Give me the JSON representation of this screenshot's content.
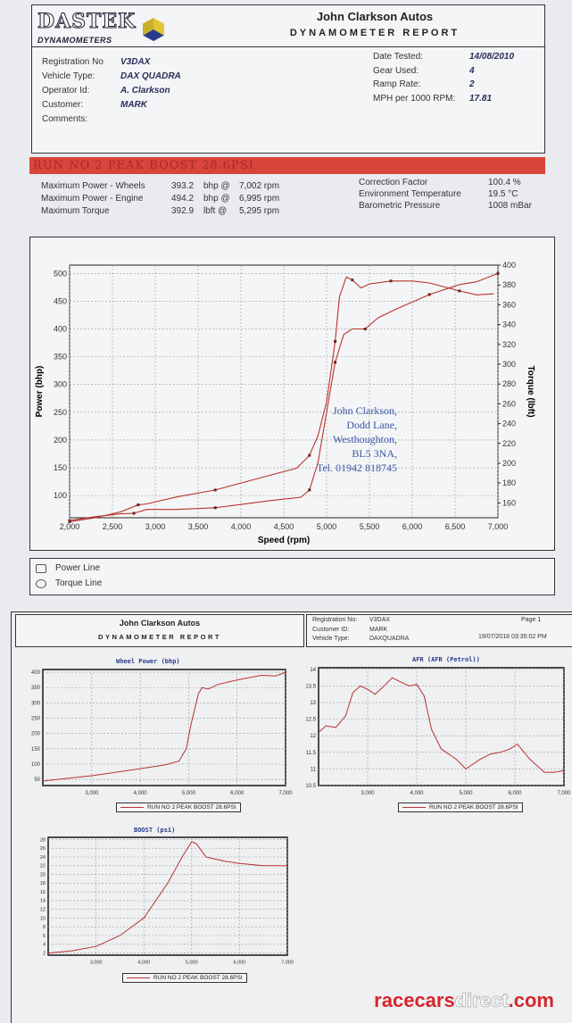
{
  "report": {
    "logo_text": "DASTEK",
    "logo_sub": "DYNAMOMETERS",
    "company": "John Clarkson Autos",
    "title": "DYNAMOMETER REPORT",
    "fields_left": [
      {
        "label": "Registration No",
        "value": "V3DAX"
      },
      {
        "label": "Vehicle Type:",
        "value": "DAX QUADRA"
      },
      {
        "label": "Operator Id:",
        "value": "A. Clarkson"
      },
      {
        "label": "Customer:",
        "value": "MARK"
      },
      {
        "label": "Comments:",
        "value": ""
      }
    ],
    "fields_right": [
      {
        "label": "Date Tested:",
        "value": "14/08/2010"
      },
      {
        "label": "Gear Used:",
        "value": "4"
      },
      {
        "label": "Ramp Rate:",
        "value": "2"
      },
      {
        "label": "MPH per 1000 RPM:",
        "value": "17.81"
      }
    ],
    "run_banner": "RUN NO 2 PEAK BOOST 28.6PSI",
    "stats_left": [
      {
        "label": "Maximum Power - Wheels",
        "value": "393.2",
        "unit": "bhp @",
        "rpm": "7,002 rpm"
      },
      {
        "label": "Maximum Power - Engine",
        "value": "494.2",
        "unit": "bhp @",
        "rpm": "6,995 rpm"
      },
      {
        "label": "Maximum Torque",
        "value": "392.9",
        "unit": "lbft @",
        "rpm": "5,295 rpm"
      }
    ],
    "stats_right": [
      {
        "label": "Correction Factor",
        "value": "100.4 %"
      },
      {
        "label": "Environment Temperature",
        "value": "19.5 °C"
      },
      {
        "label": "Barometric Pressure",
        "value": "1008 mBar"
      }
    ],
    "stamp": [
      "John Clarkson,",
      "Dodd Lane,",
      "Westhoughton,",
      "BL5 3NA,",
      "Tel. 01942 818745"
    ],
    "legend": [
      "Power Line",
      "Torque Line"
    ]
  },
  "page2": {
    "company": "John Clarkson Autos",
    "title": "DYNAMOMETER REPORT",
    "fields": [
      {
        "label": "Registration No:",
        "value": "V3DAX"
      },
      {
        "label": "Customer ID:",
        "value": "MARK"
      },
      {
        "label": "Vehicle Type:",
        "value": "DAXQUADRA"
      }
    ],
    "page": "Page 1",
    "timestamp": "19/07/2018 03:35:02 PM",
    "legend_label": "RUN NO 2 PEAK BOOST 28.6PSI"
  },
  "watermark": {
    "part1": "racecars",
    "part2": "direct",
    "part3": ".com"
  },
  "colors": {
    "line": "#b8322e",
    "banner": "#d8453d",
    "stamp": "#3a55a8",
    "watermark_red": "#d6262b"
  },
  "chart_data": [
    {
      "type": "line",
      "title": "",
      "xlabel": "Speed (rpm)",
      "ylabel": "Power (bhp)",
      "y2label": "Torque (lbft)",
      "xlim": [
        2000,
        7000
      ],
      "ylim": [
        60,
        515
      ],
      "y2lim": [
        145,
        400
      ],
      "grid": true,
      "xticks": [
        "2,000",
        "2,500",
        "3,000",
        "3,500",
        "4,000",
        "4,500",
        "5,000",
        "5,500",
        "6,000",
        "6,500",
        "7,000"
      ],
      "xtick_values": [
        2000,
        2500,
        3000,
        3500,
        4000,
        4500,
        5000,
        5500,
        6000,
        6500,
        7000
      ],
      "yticks": [
        100,
        150,
        200,
        250,
        300,
        350,
        400,
        450,
        500
      ],
      "y2ticks": [
        160,
        180,
        200,
        220,
        240,
        260,
        280,
        300,
        320,
        340,
        360,
        380,
        400
      ],
      "legend": "bottom",
      "series": [
        {
          "name": "Power Line",
          "axis": "left",
          "x": [
            2000,
            2300,
            2600,
            2750,
            2900,
            3250,
            3700,
            4300,
            4700,
            4800,
            4900,
            5000,
            5100,
            5200,
            5300,
            5450,
            5600,
            5800,
            6200,
            6550,
            6750,
            7000
          ],
          "y": [
            55,
            62,
            67,
            68,
            75,
            75,
            78,
            90,
            97,
            110,
            160,
            250,
            340,
            390,
            400,
            400,
            420,
            435,
            462,
            480,
            485,
            500
          ]
        },
        {
          "name": "Torque Line",
          "axis": "right",
          "x": [
            2000,
            2300,
            2600,
            2800,
            2900,
            3250,
            3700,
            4300,
            4650,
            4800,
            4900,
            5000,
            5100,
            5150,
            5230,
            5300,
            5400,
            5500,
            5750,
            6000,
            6200,
            6550,
            6750,
            6950
          ],
          "y": [
            141,
            145,
            151,
            158,
            159,
            166,
            173,
            187,
            195,
            208,
            228,
            262,
            323,
            368,
            388,
            385,
            377,
            381,
            384,
            384,
            382,
            374,
            370,
            371
          ]
        }
      ]
    },
    {
      "type": "line",
      "title": "Wheel Power (bhp)",
      "xlim": [
        1990,
        7000
      ],
      "ylim": [
        30,
        409
      ],
      "grid": true,
      "xticks": [
        "3,000",
        "4,000",
        "5,000",
        "6,000",
        "7,000"
      ],
      "xtick_values": [
        3000,
        4000,
        5000,
        6000,
        7000
      ],
      "yticks": [
        50,
        100,
        150,
        200,
        250,
        300,
        350,
        400
      ],
      "series": [
        {
          "name": "RUN NO 2 PEAK BOOST 28.6PSI",
          "x": [
            2000,
            3000,
            4000,
            4500,
            4800,
            4950,
            5050,
            5200,
            5280,
            5400,
            5600,
            6000,
            6500,
            6800,
            7000
          ],
          "y": [
            45,
            62,
            85,
            97,
            110,
            150,
            230,
            330,
            350,
            345,
            360,
            375,
            390,
            388,
            400
          ]
        }
      ]
    },
    {
      "type": "line",
      "title": "AFR (AFR (Petrol))",
      "xlim": [
        2000,
        7000
      ],
      "ylim": [
        10.5,
        14.05
      ],
      "grid": true,
      "xticks": [
        "3,000",
        "4,000",
        "5,000",
        "6,000",
        "7,000"
      ],
      "xtick_values": [
        3000,
        4000,
        5000,
        6000,
        7000
      ],
      "yticks": [
        10.5,
        11,
        11.5,
        12,
        12.5,
        13,
        13.5,
        14
      ],
      "series": [
        {
          "name": "RUN NO 2 PEAK BOOST 28.6PSI",
          "x": [
            2000,
            2150,
            2350,
            2550,
            2700,
            2850,
            3000,
            3150,
            3300,
            3500,
            3700,
            3850,
            4000,
            4150,
            4300,
            4500,
            4800,
            5000,
            5300,
            5500,
            5700,
            5900,
            6050,
            6300,
            6600,
            6800,
            7000
          ],
          "y": [
            12.1,
            12.3,
            12.25,
            12.6,
            13.3,
            13.5,
            13.4,
            13.25,
            13.45,
            13.75,
            13.6,
            13.5,
            13.55,
            13.2,
            12.2,
            11.6,
            11.3,
            11.0,
            11.3,
            11.45,
            11.5,
            11.6,
            11.75,
            11.3,
            10.9,
            10.9,
            10.95
          ]
        }
      ]
    },
    {
      "type": "line",
      "title": "BOOST (psi)",
      "xlim": [
        2000,
        7000
      ],
      "ylim": [
        1.5,
        28.5
      ],
      "grid": true,
      "xticks": [
        "3,000",
        "4,000",
        "5,000",
        "6,000",
        "7,000"
      ],
      "xtick_values": [
        3000,
        4000,
        5000,
        6000,
        7000
      ],
      "yticks": [
        2,
        4,
        6,
        8,
        10,
        12,
        14,
        16,
        18,
        20,
        22,
        24,
        26,
        28
      ],
      "series": [
        {
          "name": "RUN NO 2 PEAK BOOST 28.6PSI",
          "x": [
            2000,
            2500,
            3000,
            3500,
            4000,
            4500,
            4800,
            5000,
            5100,
            5300,
            5700,
            6000,
            6500,
            7000
          ],
          "y": [
            2,
            2.5,
            3.5,
            6,
            10,
            18,
            24,
            27.5,
            27,
            24,
            23,
            22.5,
            22,
            22
          ]
        }
      ]
    }
  ]
}
